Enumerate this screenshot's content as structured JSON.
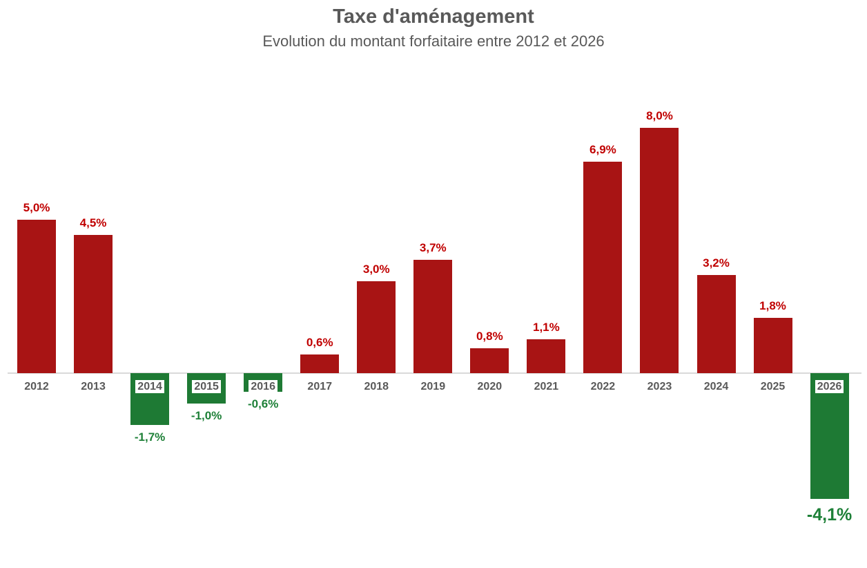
{
  "header": {
    "title": "Taxe d'aménagement",
    "subtitle": "Evolution du montant forfaitaire entre 2012 et 2026"
  },
  "colors": {
    "positive_bar": "#a81414",
    "negative_bar": "#1e7a34",
    "positive_label": "#c00000",
    "negative_label": "#1e8038",
    "category_label": "#595959",
    "axis_line": "#d9d9d9",
    "title": "#595959"
  },
  "chart_data": {
    "type": "bar",
    "title": "Taxe d'aménagement",
    "subtitle": "Evolution du montant forfaitaire entre 2012 et 2026",
    "categories": [
      "2012",
      "2013",
      "2014",
      "2015",
      "2016",
      "2017",
      "2018",
      "2019",
      "2020",
      "2021",
      "2022",
      "2023",
      "2024",
      "2025",
      "2026"
    ],
    "values": [
      5.0,
      4.5,
      -1.7,
      -1.0,
      -0.6,
      0.6,
      3.0,
      3.7,
      0.8,
      1.1,
      6.9,
      8.0,
      3.2,
      1.8,
      -4.1
    ],
    "value_labels": [
      "5,0%",
      "4,5%",
      "-1,7%",
      "-1,0%",
      "-0,6%",
      "0,6%",
      "3,0%",
      "3,7%",
      "0,8%",
      "1,1%",
      "6,9%",
      "8,0%",
      "3,2%",
      "1,8%",
      "-4,1%"
    ],
    "xlabel": "",
    "ylabel": "",
    "ylim": [
      -4.5,
      9.0
    ],
    "grid": false,
    "legend": false,
    "value_label_position": "outside-end",
    "negative_year_labels_boxed": true,
    "emphasized_category": "2026"
  }
}
